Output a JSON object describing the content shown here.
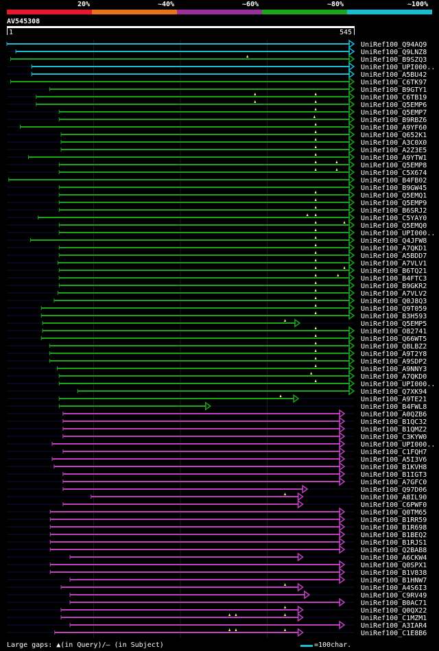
{
  "legend": {
    "segments": [
      {
        "label": "20%",
        "color": "#e8172f"
      },
      {
        "label": "~40%",
        "color": "#e8741a"
      },
      {
        "label": "~60%",
        "color": "#9b2f9b"
      },
      {
        "label": "~80%",
        "color": "#1aa51a"
      },
      {
        "label": "~100%",
        "color": "#19bfd0"
      }
    ]
  },
  "query": {
    "id": "AV545308",
    "start": "1",
    "end": "545",
    "length": 545
  },
  "colors": {
    "cyan": "#19bfd0",
    "green": "#1aa51a",
    "purple": "#c040c0",
    "gap": "#ffff88"
  },
  "hits": [
    {
      "label": "UniRef100_Q94AQ9",
      "start": 1,
      "end": 545,
      "color": "cyan",
      "arrow": true,
      "gaps": []
    },
    {
      "label": "UniRef100_Q9LNZ8",
      "start": 15,
      "end": 545,
      "color": "cyan",
      "arrow": true,
      "gaps": []
    },
    {
      "label": "UniRef100_B9SZQ3",
      "start": 7,
      "end": 545,
      "color": "green",
      "arrow": true,
      "gaps": [
        378
      ]
    },
    {
      "label": "UniRef100_UPI000..",
      "start": 40,
      "end": 545,
      "color": "cyan",
      "arrow": true,
      "gaps": []
    },
    {
      "label": "UniRef100_A5BU42",
      "start": 40,
      "end": 545,
      "color": "cyan",
      "arrow": true,
      "gaps": []
    },
    {
      "label": "UniRef100_C6TK97",
      "start": 7,
      "end": 545,
      "color": "green",
      "arrow": true,
      "gaps": []
    },
    {
      "label": "UniRef100_B9GTY1",
      "start": 68,
      "end": 545,
      "color": "green",
      "arrow": true,
      "gaps": []
    },
    {
      "label": "UniRef100_C6TB19",
      "start": 47,
      "end": 545,
      "color": "green",
      "arrow": true,
      "gaps": [
        390,
        485
      ]
    },
    {
      "label": "UniRef100_Q5EMP6",
      "start": 47,
      "end": 545,
      "color": "green",
      "arrow": true,
      "gaps": [
        390,
        485
      ]
    },
    {
      "label": "UniRef100_Q5EMP7",
      "start": 83,
      "end": 545,
      "color": "green",
      "arrow": true,
      "gaps": [
        485
      ]
    },
    {
      "label": "UniRef100_B9RBZ6",
      "start": 83,
      "end": 545,
      "color": "green",
      "arrow": true,
      "gaps": [
        483
      ]
    },
    {
      "label": "UniRef100_A9YF60",
      "start": 22,
      "end": 545,
      "color": "green",
      "arrow": true,
      "gaps": [
        485
      ]
    },
    {
      "label": "UniRef100_Q652K1",
      "start": 86,
      "end": 545,
      "color": "green",
      "arrow": true,
      "gaps": [
        485
      ]
    },
    {
      "label": "UniRef100_A3C0X0",
      "start": 86,
      "end": 545,
      "color": "green",
      "arrow": true,
      "gaps": [
        485
      ]
    },
    {
      "label": "UniRef100_A2Z3E5",
      "start": 86,
      "end": 545,
      "color": "green",
      "arrow": true,
      "gaps": [
        485
      ]
    },
    {
      "label": "UniRef100_A9YTW1",
      "start": 35,
      "end": 545,
      "color": "green",
      "arrow": true,
      "gaps": [
        485
      ]
    },
    {
      "label": "UniRef100_Q5EMP8",
      "start": 83,
      "end": 545,
      "color": "green",
      "arrow": true,
      "gaps": [
        485,
        518
      ]
    },
    {
      "label": "UniRef100_C5X674",
      "start": 83,
      "end": 545,
      "color": "green",
      "arrow": true,
      "gaps": [
        485,
        518
      ]
    },
    {
      "label": "UniRef100_B4FB02",
      "start": 4,
      "end": 545,
      "color": "green",
      "arrow": true,
      "gaps": []
    },
    {
      "label": "UniRef100_B9GW45",
      "start": 83,
      "end": 545,
      "color": "green",
      "arrow": true,
      "gaps": []
    },
    {
      "label": "UniRef100_Q5EMQ1",
      "start": 83,
      "end": 545,
      "color": "green",
      "arrow": true,
      "gaps": [
        485
      ]
    },
    {
      "label": "UniRef100_Q5EMP9",
      "start": 83,
      "end": 545,
      "color": "green",
      "arrow": true,
      "gaps": [
        485
      ]
    },
    {
      "label": "UniRef100_B6SRJ2",
      "start": 83,
      "end": 545,
      "color": "green",
      "arrow": true,
      "gaps": [
        485
      ]
    },
    {
      "label": "UniRef100_C5YAY0",
      "start": 50,
      "end": 545,
      "color": "green",
      "arrow": true,
      "gaps": [
        472,
        485
      ]
    },
    {
      "label": "UniRef100_Q5EMQ0",
      "start": 83,
      "end": 545,
      "color": "green",
      "arrow": true,
      "gaps": [
        485,
        530
      ]
    },
    {
      "label": "UniRef100_UPI000..",
      "start": 83,
      "end": 545,
      "color": "green",
      "arrow": true,
      "gaps": [
        485
      ]
    },
    {
      "label": "UniRef100_Q4JFW8",
      "start": 38,
      "end": 545,
      "color": "green",
      "arrow": true,
      "gaps": [
        485
      ]
    },
    {
      "label": "UniRef100_A7QKD1",
      "start": 83,
      "end": 545,
      "color": "green",
      "arrow": true,
      "gaps": [
        485
      ]
    },
    {
      "label": "UniRef100_A5BDD7",
      "start": 83,
      "end": 545,
      "color": "green",
      "arrow": true,
      "gaps": [
        485
      ]
    },
    {
      "label": "UniRef100_A7VLV1",
      "start": 81,
      "end": 545,
      "color": "green",
      "arrow": true,
      "gaps": [
        485
      ]
    },
    {
      "label": "UniRef100_B6TQ21",
      "start": 83,
      "end": 545,
      "color": "green",
      "arrow": true,
      "gaps": [
        485,
        530
      ]
    },
    {
      "label": "UniRef100_B4FTC3",
      "start": 83,
      "end": 545,
      "color": "green",
      "arrow": true,
      "gaps": [
        485,
        520
      ]
    },
    {
      "label": "UniRef100_B9GKR2",
      "start": 83,
      "end": 545,
      "color": "green",
      "arrow": true,
      "gaps": [
        485
      ]
    },
    {
      "label": "UniRef100_A7VLV2",
      "start": 81,
      "end": 545,
      "color": "green",
      "arrow": true,
      "gaps": [
        485
      ]
    },
    {
      "label": "UniRef100_Q0J8Q3",
      "start": 75,
      "end": 545,
      "color": "green",
      "arrow": true,
      "gaps": [
        485
      ]
    },
    {
      "label": "UniRef100_Q9T059",
      "start": 55,
      "end": 545,
      "color": "green",
      "arrow": true,
      "gaps": [
        485
      ]
    },
    {
      "label": "UniRef100_B3H593",
      "start": 55,
      "end": 545,
      "color": "green",
      "arrow": true,
      "gaps": [
        485
      ]
    },
    {
      "label": "UniRef100_Q5EMP5",
      "start": 57,
      "end": 460,
      "color": "green",
      "arrow": true,
      "gaps": [
        437
      ]
    },
    {
      "label": "UniRef100_O82741",
      "start": 57,
      "end": 545,
      "color": "green",
      "arrow": true,
      "gaps": [
        485
      ]
    },
    {
      "label": "UniRef100_Q66WT5",
      "start": 55,
      "end": 545,
      "color": "green",
      "arrow": true,
      "gaps": [
        485
      ]
    },
    {
      "label": "UniRef100_Q8LBZ2",
      "start": 68,
      "end": 545,
      "color": "green",
      "arrow": true,
      "gaps": [
        485
      ]
    },
    {
      "label": "UniRef100_A9T2Y8",
      "start": 68,
      "end": 545,
      "color": "green",
      "arrow": true,
      "gaps": [
        485
      ]
    },
    {
      "label": "UniRef100_A9SDP2",
      "start": 68,
      "end": 545,
      "color": "green",
      "arrow": true,
      "gaps": [
        485
      ]
    },
    {
      "label": "UniRef100_A9NNY3",
      "start": 80,
      "end": 545,
      "color": "green",
      "arrow": true,
      "gaps": [
        485
      ]
    },
    {
      "label": "UniRef100_A7QKD0",
      "start": 83,
      "end": 545,
      "color": "green",
      "arrow": true,
      "gaps": [
        478
      ]
    },
    {
      "label": "UniRef100_UPI000..",
      "start": 83,
      "end": 545,
      "color": "green",
      "arrow": true,
      "gaps": [
        485
      ]
    },
    {
      "label": "UniRef100_Q7XK94",
      "start": 112,
      "end": 545,
      "color": "green",
      "arrow": true,
      "gaps": []
    },
    {
      "label": "UniRef100_A9TE21",
      "start": 83,
      "end": 458,
      "color": "green",
      "arrow": true,
      "gaps": [
        430
      ]
    },
    {
      "label": "UniRef100_B4FWL8",
      "start": 83,
      "end": 320,
      "color": "green",
      "arrow": true,
      "gaps": []
    },
    {
      "label": "UniRef100_A0QZB6",
      "start": 89,
      "end": 530,
      "color": "purple",
      "arrow": true,
      "gaps": []
    },
    {
      "label": "UniRef100_B1QC32",
      "start": 89,
      "end": 530,
      "color": "purple",
      "arrow": true,
      "gaps": []
    },
    {
      "label": "UniRef100_B1QMZ2",
      "start": 89,
      "end": 530,
      "color": "purple",
      "arrow": true,
      "gaps": []
    },
    {
      "label": "UniRef100_C3KYW0",
      "start": 89,
      "end": 530,
      "color": "purple",
      "arrow": true,
      "gaps": []
    },
    {
      "label": "UniRef100_UPI000..",
      "start": 72,
      "end": 530,
      "color": "purple",
      "arrow": true,
      "gaps": []
    },
    {
      "label": "UniRef100_C1FQH7",
      "start": 89,
      "end": 530,
      "color": "purple",
      "arrow": true,
      "gaps": []
    },
    {
      "label": "UniRef100_A5I3V6",
      "start": 72,
      "end": 530,
      "color": "purple",
      "arrow": true,
      "gaps": []
    },
    {
      "label": "UniRef100_B1KVH8",
      "start": 75,
      "end": 530,
      "color": "purple",
      "arrow": true,
      "gaps": []
    },
    {
      "label": "UniRef100_B1IGT3",
      "start": 89,
      "end": 530,
      "color": "purple",
      "arrow": true,
      "gaps": []
    },
    {
      "label": "UniRef100_A7GFC0",
      "start": 89,
      "end": 530,
      "color": "purple",
      "arrow": true,
      "gaps": []
    },
    {
      "label": "UniRef100_Q97D06",
      "start": 89,
      "end": 472,
      "color": "purple",
      "arrow": true,
      "gaps": []
    },
    {
      "label": "UniRef100_A8IL90",
      "start": 133,
      "end": 465,
      "color": "purple",
      "arrow": true,
      "gaps": [
        437
      ]
    },
    {
      "label": "UniRef100_C6PWF0",
      "start": 89,
      "end": 465,
      "color": "purple",
      "arrow": true,
      "gaps": []
    },
    {
      "label": "UniRef100_Q0TM65",
      "start": 69,
      "end": 530,
      "color": "purple",
      "arrow": true,
      "gaps": []
    },
    {
      "label": "UniRef100_B1RR59",
      "start": 69,
      "end": 530,
      "color": "purple",
      "arrow": true,
      "gaps": []
    },
    {
      "label": "UniRef100_B1R698",
      "start": 69,
      "end": 530,
      "color": "purple",
      "arrow": true,
      "gaps": []
    },
    {
      "label": "UniRef100_B1BEQ2",
      "start": 69,
      "end": 530,
      "color": "purple",
      "arrow": true,
      "gaps": []
    },
    {
      "label": "UniRef100_B1RJS1",
      "start": 69,
      "end": 530,
      "color": "purple",
      "arrow": true,
      "gaps": []
    },
    {
      "label": "UniRef100_Q2BAB8",
      "start": 69,
      "end": 530,
      "color": "purple",
      "arrow": true,
      "gaps": []
    },
    {
      "label": "UniRef100_A6CKW4",
      "start": 100,
      "end": 465,
      "color": "purple",
      "arrow": true,
      "gaps": []
    },
    {
      "label": "UniRef100_Q0SPX1",
      "start": 69,
      "end": 530,
      "color": "purple",
      "arrow": true,
      "gaps": []
    },
    {
      "label": "UniRef100_B1V838",
      "start": 69,
      "end": 530,
      "color": "purple",
      "arrow": true,
      "gaps": []
    },
    {
      "label": "UniRef100_B1HNW7",
      "start": 100,
      "end": 530,
      "color": "purple",
      "arrow": true,
      "gaps": []
    },
    {
      "label": "UniRef100_A4S6I3",
      "start": 86,
      "end": 465,
      "color": "purple",
      "arrow": true,
      "gaps": [
        437
      ]
    },
    {
      "label": "UniRef100_C9RV49",
      "start": 100,
      "end": 475,
      "color": "purple",
      "arrow": true,
      "gaps": []
    },
    {
      "label": "UniRef100_B0AC71",
      "start": 100,
      "end": 530,
      "color": "purple",
      "arrow": true,
      "gaps": []
    },
    {
      "label": "UniRef100_Q0QX22",
      "start": 86,
      "end": 465,
      "color": "purple",
      "arrow": true,
      "gaps": [
        437
      ]
    },
    {
      "label": "UniRef100_C1MZM1",
      "start": 86,
      "end": 465,
      "color": "purple",
      "arrow": true,
      "gaps": [
        350,
        360,
        437
      ]
    },
    {
      "label": "UniRef100_A3IAR4",
      "start": 100,
      "end": 530,
      "color": "purple",
      "arrow": true,
      "gaps": []
    },
    {
      "label": "UniRef100_C1E8B6",
      "start": 76,
      "end": 465,
      "color": "purple",
      "arrow": true,
      "gaps": [
        350,
        360,
        437
      ]
    }
  ],
  "footer": {
    "gaps_text": "Large gaps: ▲(in Query)/– (in Subject)",
    "scale_text": "=100char."
  }
}
